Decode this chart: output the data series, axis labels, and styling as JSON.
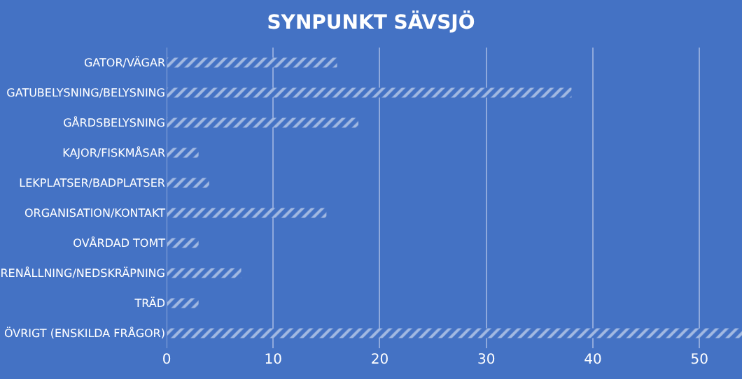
{
  "chart_data": {
    "type": "bar",
    "orientation": "horizontal",
    "title": "SYNPUNKT SÄVSJÖ",
    "categories": [
      "GATOR/VÄGAR",
      "GATUBELYSNING/BELYSNING",
      "GÅRDSBELYSNING",
      "KAJOR/FISKMÅSAR",
      "LEKPLATSER/BADPLATSER",
      "ORGANISATION/KONTAKT",
      "OVÅRDAD TOMT",
      "RENÅLLNING/NEDSKRÄPNING",
      "TRÄD",
      "ÖVRIGT (ENSKILDA FRÅGOR)"
    ],
    "values": [
      16,
      38,
      18,
      3,
      4,
      15,
      3,
      7,
      3,
      54
    ],
    "color": "#ffffff",
    "xlim": [
      0,
      54
    ],
    "xticks": [
      0,
      10,
      20,
      30,
      40,
      50
    ],
    "grid": "x"
  }
}
